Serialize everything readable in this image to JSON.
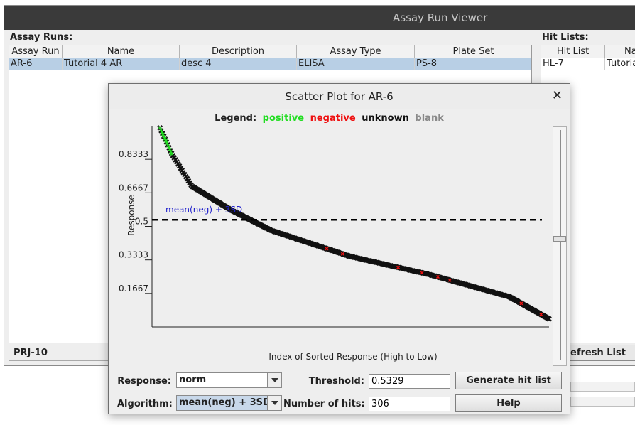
{
  "window": {
    "title": "Assay Run Viewer"
  },
  "assay_runs": {
    "label": "Assay Runs:",
    "columns": [
      "Assay Run",
      "Name",
      "Description",
      "Assay Type",
      "Plate Set"
    ],
    "rows": [
      [
        "AR-6",
        "Tutorial 4 AR",
        "desc 4",
        "ELISA",
        "PS-8"
      ]
    ]
  },
  "hit_lists": {
    "label": "Hit Lists:",
    "columns": [
      "Hit List",
      "Na"
    ],
    "rows": [
      [
        "HL-7",
        "Tutoria"
      ]
    ]
  },
  "status": {
    "project": "PRJ-10"
  },
  "refresh_button": "efresh List",
  "dialog": {
    "title": "Scatter Plot for AR-6",
    "close_symbol": "✕",
    "legend": {
      "label": "Legend:",
      "items": [
        {
          "text": "positive",
          "color": "#22dd22"
        },
        {
          "text": "negative",
          "color": "#ee1111"
        },
        {
          "text": "unknown",
          "color": "#111111"
        },
        {
          "text": "blank",
          "color": "#8a8a8a"
        }
      ]
    },
    "response_label": "Response:",
    "response_value": "norm",
    "algorithm_label": "Algorithm:",
    "algorithm_value": "mean(neg) + 3SD",
    "threshold_label": "Threshold:",
    "threshold_value": "0.5329",
    "hits_label": "Number of hits:",
    "hits_value": "306",
    "generate_button": "Generate hit list",
    "help_button": "Help"
  },
  "chart_data": {
    "type": "scatter",
    "title": "",
    "xlabel": "Index of Sorted Response (High to Low)",
    "ylabel": "Response",
    "yticks": [
      "0.1667",
      "0.3333",
      "0.5",
      "0.6667",
      "0.8333"
    ],
    "ytick_values": [
      0.1667,
      0.3333,
      0.5,
      0.6667,
      0.8333
    ],
    "ylim": [
      0,
      1
    ],
    "xlim": [
      0,
      1
    ],
    "threshold": {
      "value": 0.5329,
      "label": "mean(neg) + 3SD",
      "style": "dashed"
    },
    "curve_points": [
      [
        0.02,
        0.99
      ],
      [
        0.05,
        0.86
      ],
      [
        0.1,
        0.7
      ],
      [
        0.2,
        0.58
      ],
      [
        0.3,
        0.48
      ],
      [
        0.5,
        0.35
      ],
      [
        0.7,
        0.26
      ],
      [
        0.9,
        0.15
      ],
      [
        1.0,
        0.04
      ]
    ],
    "series": [
      {
        "name": "positive",
        "color": "#22dd22",
        "x_range": [
          0.02,
          0.05
        ]
      },
      {
        "name": "negative",
        "color": "#ee1111",
        "x_values": [
          0.44,
          0.48,
          0.62,
          0.68,
          0.72,
          0.75,
          0.93,
          0.98
        ]
      },
      {
        "name": "unknown",
        "color": "#111111",
        "x_range": [
          0.02,
          1.0
        ]
      }
    ],
    "grid": false,
    "legend_position": "top"
  }
}
